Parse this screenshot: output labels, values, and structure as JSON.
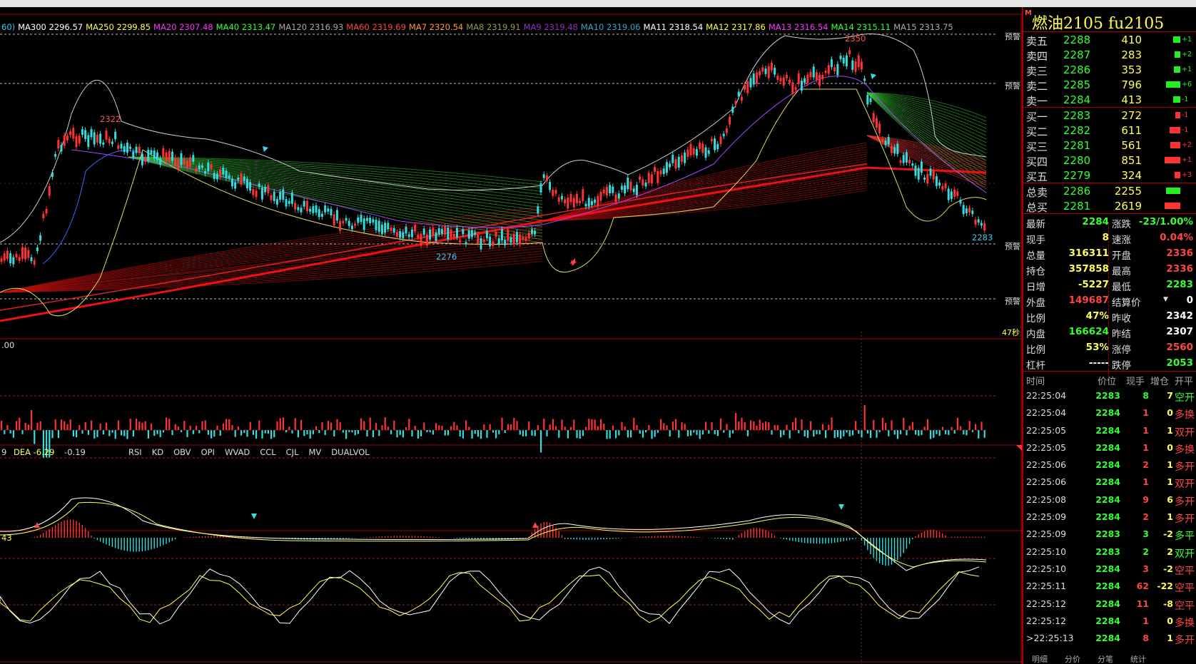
{
  "ma_legend": [
    {
      "label": "60)",
      "color": "#33ccff"
    },
    {
      "label": "MA300 2296.57",
      "color": "#ffffff"
    },
    {
      "label": "MA250 2299.85",
      "color": "#ffff55"
    },
    {
      "label": "MA20 2307.48",
      "color": "#ff33ff"
    },
    {
      "label": "MA40 2313.47",
      "color": "#33ff33"
    },
    {
      "label": "MA120 2316.93",
      "color": "#aaaaaa"
    },
    {
      "label": "MA60 2319.69",
      "color": "#ff4444"
    },
    {
      "label": "MA7 2320.54",
      "color": "#ff9933"
    },
    {
      "label": "MA8 2319.91",
      "color": "#999944"
    },
    {
      "label": "MA9 2319.48",
      "color": "#8833bb"
    },
    {
      "label": "MA10 2319.06",
      "color": "#33aabb"
    },
    {
      "label": "MA11 2318.54",
      "color": "#ffffff"
    },
    {
      "label": "MA12 2317.86",
      "color": "#ffff33"
    },
    {
      "label": "MA13 2316.54",
      "color": "#ff33ff"
    },
    {
      "label": "MA14 2315.11",
      "color": "#33ff33"
    },
    {
      "label": "MA15 2313.75",
      "color": "#aaaaaa"
    }
  ],
  "main_chart": {
    "peak_label": "2350",
    "high_label": "2322",
    "low_label": "2276",
    "last_label": "2283",
    "countdown": "47秒",
    "alert_label": "预警"
  },
  "volume_panel": {
    "label": ".00"
  },
  "macd_panel": {
    "label": "9",
    "dea_label": "DEA -6.29",
    "macd_label": "-0.19",
    "tabs": [
      "RSI",
      "KD",
      "OBV",
      "OPI",
      "WVAD",
      "CCL",
      "CJL",
      "MV",
      "DUALVOL"
    ]
  },
  "kd_panel": {
    "label": "43"
  },
  "contract": {
    "marker": "M",
    "title": "燃油2105  fu2105"
  },
  "orderbook": {
    "asks": [
      {
        "label": "卖五",
        "price": "2288",
        "vol": "410",
        "chg": "+1",
        "w": 10
      },
      {
        "label": "卖四",
        "price": "2287",
        "vol": "283",
        "chg": "+2",
        "w": 8
      },
      {
        "label": "卖三",
        "price": "2286",
        "vol": "353",
        "chg": "+1",
        "w": 9
      },
      {
        "label": "卖二",
        "price": "2285",
        "vol": "796",
        "chg": "+6",
        "w": 20
      },
      {
        "label": "卖一",
        "price": "2284",
        "vol": "413",
        "chg": "-1",
        "w": 10
      }
    ],
    "bids": [
      {
        "label": "买一",
        "price": "2283",
        "vol": "272",
        "chg": "-1",
        "w": 7
      },
      {
        "label": "买二",
        "price": "2282",
        "vol": "611",
        "chg": "-1",
        "w": 15
      },
      {
        "label": "买三",
        "price": "2281",
        "vol": "561",
        "chg": "+2",
        "w": 14
      },
      {
        "label": "买四",
        "price": "2280",
        "vol": "851",
        "chg": "+1",
        "w": 22
      },
      {
        "label": "买五",
        "price": "2279",
        "vol": "324",
        "chg": "+3",
        "w": 8
      }
    ],
    "total_ask": {
      "label": "总卖",
      "price": "2286",
      "vol": "2255",
      "w": 20
    },
    "total_bid": {
      "label": "总买",
      "price": "2281",
      "vol": "2619",
      "w": 22
    }
  },
  "stats": [
    {
      "l1": "最新",
      "v1": "2284",
      "c1": "#33ff33",
      "l2": "涨跌",
      "v2": "-23/1.00%",
      "c2": "#33ff33"
    },
    {
      "l1": "现手",
      "v1": "8",
      "c1": "#ffff55",
      "l2": "速涨",
      "v2": "0.04%",
      "c2": "#ff4444"
    },
    {
      "l1": "总量",
      "v1": "316311",
      "c1": "#ffff55",
      "l2": "开盘",
      "v2": "2336",
      "c2": "#ff4444"
    },
    {
      "l1": "持仓",
      "v1": "357858",
      "c1": "#ffff55",
      "l2": "最高",
      "v2": "2336",
      "c2": "#ff4444"
    },
    {
      "l1": "日增",
      "v1": "-5227",
      "c1": "#ffff55",
      "l2": "最低",
      "v2": "2283",
      "c2": "#33ff33"
    },
    {
      "l1": "外盘",
      "v1": "149687",
      "c1": "#ff4444",
      "l2": "结算价",
      "v2": "0",
      "c2": "#ffffff"
    },
    {
      "l1": "比例",
      "v1": "47%",
      "c1": "#ffff55",
      "l2": "昨收",
      "v2": "2342",
      "c2": "#ffffff"
    },
    {
      "l1": "内盘",
      "v1": "166624",
      "c1": "#33ff33",
      "l2": "昨结",
      "v2": "2307",
      "c2": "#ffffff"
    },
    {
      "l1": "比例",
      "v1": "53%",
      "c1": "#ffff55",
      "l2": "涨停",
      "v2": "2560",
      "c2": "#ff4444"
    },
    {
      "l1": "杠杆",
      "v1": "-----",
      "c1": "#ffffff",
      "l2": "跌停",
      "v2": "2053",
      "c2": "#33ff33"
    }
  ],
  "ticks_header": {
    "time": "时间",
    "price": "价位",
    "qty": "现手",
    "oi": "增仓",
    "type": "开平"
  },
  "ticks": [
    {
      "time": "22:25:04",
      "price": "2283",
      "qty": "8",
      "qc": "#33ff33",
      "oi": "7",
      "type": "空开",
      "tc": "#33ff33"
    },
    {
      "time": "22:25:04",
      "price": "2284",
      "qty": "1",
      "qc": "#ff4444",
      "oi": "0",
      "type": "多换",
      "tc": "#ff4444"
    },
    {
      "time": "22:25:05",
      "price": "2284",
      "qty": "1",
      "qc": "#ff4444",
      "oi": "1",
      "type": "双开",
      "tc": "#ff4444"
    },
    {
      "time": "22:25:05",
      "price": "2284",
      "qty": "1",
      "qc": "#ff4444",
      "oi": "0",
      "type": "多换",
      "tc": "#ff4444"
    },
    {
      "time": "22:25:06",
      "price": "2284",
      "qty": "2",
      "qc": "#ff4444",
      "oi": "1",
      "type": "多开",
      "tc": "#ff4444"
    },
    {
      "time": "22:25:06",
      "price": "2284",
      "qty": "1",
      "qc": "#ff4444",
      "oi": "1",
      "type": "双开",
      "tc": "#ff4444"
    },
    {
      "time": "22:25:08",
      "price": "2284",
      "qty": "9",
      "qc": "#ff4444",
      "oi": "6",
      "type": "多开",
      "tc": "#ff4444"
    },
    {
      "time": "22:25:09",
      "price": "2284",
      "qty": "2",
      "qc": "#ff4444",
      "oi": "1",
      "type": "多开",
      "tc": "#ff4444"
    },
    {
      "time": "22:25:09",
      "price": "2283",
      "qty": "3",
      "qc": "#33ff33",
      "oi": "-2",
      "type": "多平",
      "tc": "#33ff33"
    },
    {
      "time": "22:25:10",
      "price": "2283",
      "qty": "2",
      "qc": "#33ff33",
      "oi": "2",
      "type": "双开",
      "tc": "#33ff33"
    },
    {
      "time": "22:25:10",
      "price": "2284",
      "qty": "3",
      "qc": "#ff4444",
      "oi": "-2",
      "type": "空平",
      "tc": "#ff4444"
    },
    {
      "time": "22:25:11",
      "price": "2284",
      "qty": "62",
      "qc": "#ff4444",
      "oi": "-22",
      "type": "空平",
      "tc": "#ff4444"
    },
    {
      "time": "22:25:12",
      "price": "2284",
      "qty": "11",
      "qc": "#ff4444",
      "oi": "-8",
      "type": "空平",
      "tc": "#ff4444"
    },
    {
      "time": "22:25:12",
      "price": "2284",
      "qty": "1",
      "qc": "#ff4444",
      "oi": "0",
      "type": "多换",
      "tc": "#ff4444"
    },
    {
      "time": ">22:25:13",
      "price": "2284",
      "qty": "8",
      "qc": "#ff4444",
      "oi": "1",
      "type": "多开",
      "tc": "#ff4444"
    }
  ],
  "bottom_tabs": [
    "明细",
    "分价",
    "分笔",
    "统计"
  ],
  "colors": {
    "up": "#ff3333",
    "down": "#33dddd",
    "border": "#aa0000",
    "ask_green": "#33ff33",
    "text_yellow": "#ffff55"
  }
}
